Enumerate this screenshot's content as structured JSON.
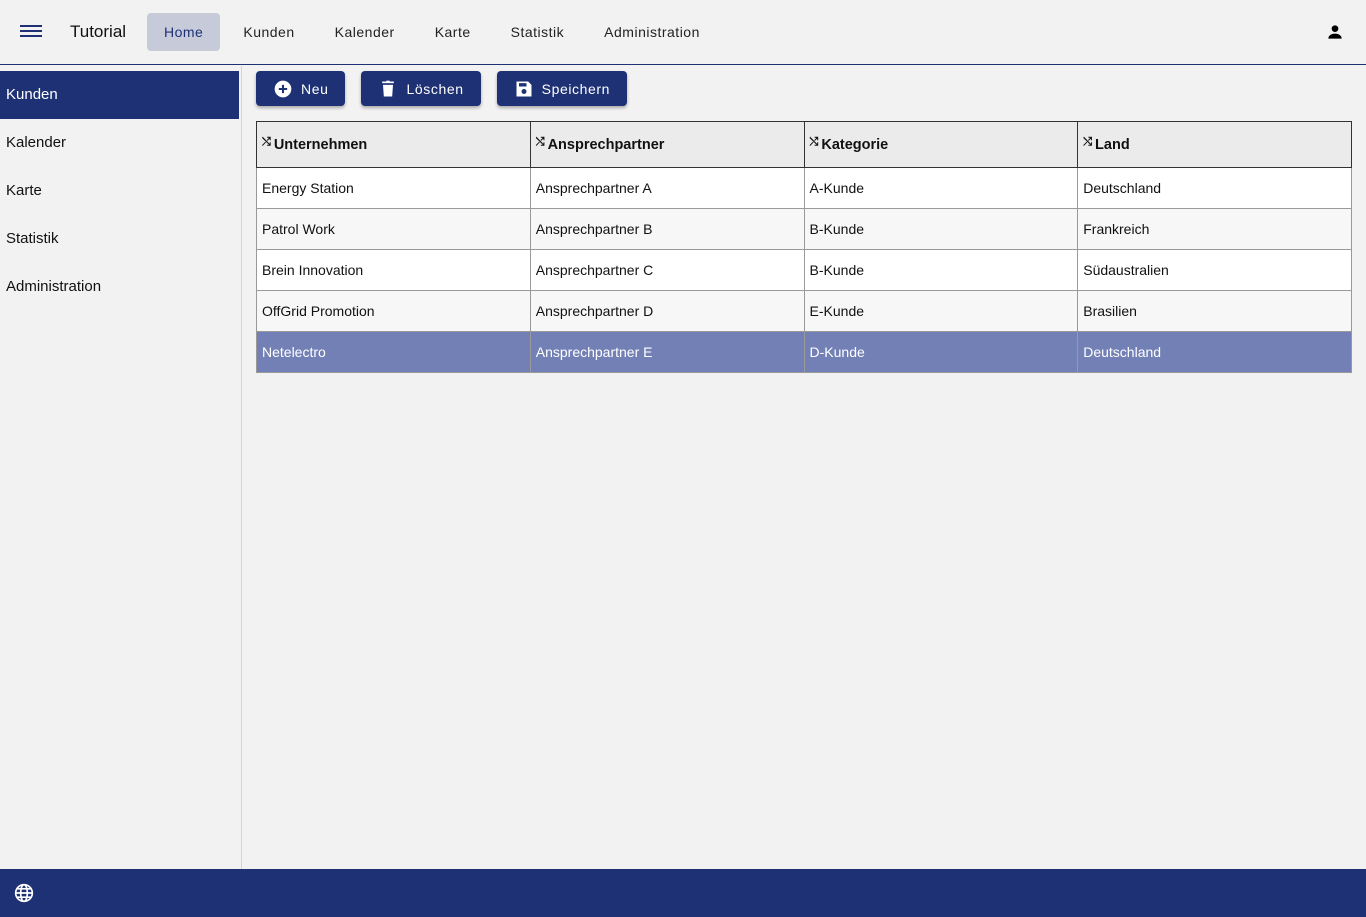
{
  "header": {
    "title": "Tutorial",
    "nav": [
      "Home",
      "Kunden",
      "Kalender",
      "Karte",
      "Statistik",
      "Administration"
    ],
    "active_nav": "Home"
  },
  "sidebar": {
    "items": [
      "Kunden",
      "Kalender",
      "Karte",
      "Statistik",
      "Administration"
    ],
    "active": "Kunden"
  },
  "toolbar": {
    "new": "Neu",
    "delete": "Löschen",
    "save": "Speichern"
  },
  "table": {
    "columns": [
      "Unternehmen",
      "Ansprechpartner",
      "Kategorie",
      "Land"
    ],
    "rows": [
      [
        "Energy Station",
        "Ansprechpartner A",
        "A-Kunde",
        "Deutschland"
      ],
      [
        "Patrol Work",
        "Ansprechpartner B",
        "B-Kunde",
        "Frankreich"
      ],
      [
        "Brein Innovation",
        "Ansprechpartner C",
        "B-Kunde",
        "Südaustralien"
      ],
      [
        "OffGrid Promotion",
        "Ansprechpartner D",
        "E-Kunde",
        "Brasilien"
      ],
      [
        "Netelectro",
        "Ansprechpartner E",
        "D-Kunde",
        "Deutschland"
      ]
    ],
    "selected_row": 4
  },
  "colors": {
    "primary": "#1e3174",
    "selected_row": "#7280b5"
  }
}
